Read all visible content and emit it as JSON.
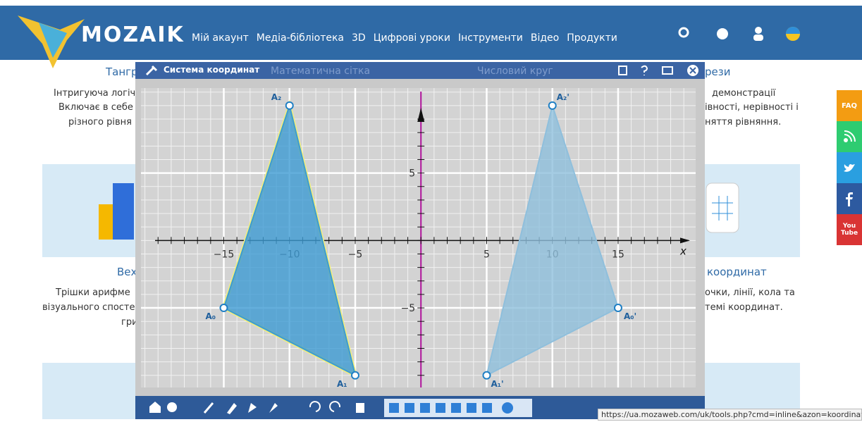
{
  "nav": {
    "logo": "MOZAIK",
    "items": [
      "Мій акаунт",
      "Медіа-бібліотека",
      "3D",
      "Цифрові уроки",
      "Інструменти",
      "Відео",
      "Продукти"
    ]
  },
  "background": {
    "titles": [
      "Тангра",
      "Вех",
      "координат",
      "рези"
    ],
    "texts": [
      "Інтригуюча логіч",
      "Включає в себе (",
      "різного рівня",
      "демонстрації",
      "івності, нерівності і",
      "няття рівняння.",
      "Трішки арифме",
      "візуального спосте",
      "гри",
      "очки, лінії, кола та",
      "темі координат."
    ]
  },
  "window": {
    "title": "Система координат",
    "background_titles": [
      "Математична сітка",
      "Числовий круг"
    ]
  },
  "plane": {
    "xlim": [
      -21.3,
      20.9
    ],
    "ylim": [
      -10.9,
      11.3
    ],
    "xticks": [
      {
        "value": -15,
        "label": "−15"
      },
      {
        "value": -10,
        "label": "−10"
      },
      {
        "value": -5,
        "label": "−5"
      },
      5,
      10,
      15
    ],
    "yticks": [
      5,
      {
        "value": -5,
        "label": "−5"
      }
    ],
    "x_label": "x",
    "polygons": [
      {
        "x": [
          -15,
          -10,
          -5
        ],
        "y": [
          -5,
          10,
          -10
        ],
        "labels": [
          "A₀",
          "A₂",
          "A₁"
        ],
        "color": "#3d9bd3"
      },
      {
        "x": [
          15,
          10,
          5
        ],
        "y": [
          -5,
          10,
          -10
        ],
        "labels": [
          "A₀'",
          "A₂'",
          "A₁'"
        ],
        "color": "#8fbfdc"
      }
    ]
  },
  "side": [
    "FAQ",
    "You Tube"
  ],
  "status_url": "https://ua.mozaweb.com/uk/tools.php?cmd=inline&azon=koordinatarend"
}
